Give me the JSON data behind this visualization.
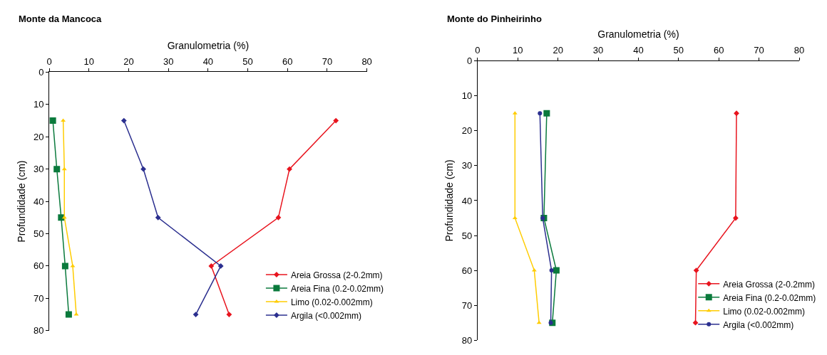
{
  "chart_data": [
    {
      "type": "line",
      "title": "Monte da Mancoca",
      "xlabel": "Granulometria (%)",
      "ylabel": "Profundidade (cm)",
      "xlim": [
        0,
        80
      ],
      "xticks": [
        0,
        10,
        20,
        30,
        40,
        50,
        60,
        70,
        80
      ],
      "ylim": [
        80,
        0
      ],
      "yticks": [
        0,
        10,
        20,
        30,
        40,
        50,
        60,
        70,
        80
      ],
      "grid": false,
      "legend": "bottom right",
      "series": [
        {
          "name": "Areia Grossa (2-0.2mm)",
          "color": "#e8141e",
          "marker": "diamond",
          "x": [
            72.2,
            60.5,
            57.7,
            40.8,
            45.3
          ],
          "values": [
            15,
            30,
            45,
            60,
            75
          ]
        },
        {
          "name": "Areia Fina (0.2-0.02mm)",
          "color": "#0a7a3c",
          "marker": "square",
          "x": [
            0.9,
            1.9,
            3.0,
            4.0,
            4.9
          ],
          "values": [
            15,
            30,
            45,
            60,
            75
          ]
        },
        {
          "name": "Limo (0.02-0.002mm)",
          "color": "#ffcc00",
          "marker": "triangle",
          "x": [
            3.5,
            3.8,
            3.8,
            5.9,
            6.8
          ],
          "values": [
            15,
            30,
            45,
            60,
            75
          ]
        },
        {
          "name": "Argila (<0.002mm)",
          "color": "#2b2f8f",
          "marker": "diamond",
          "x": [
            18.8,
            23.7,
            27.4,
            43.2,
            36.9
          ],
          "values": [
            15,
            30,
            45,
            60,
            75
          ]
        }
      ]
    },
    {
      "type": "line",
      "title": "Monte do Pinheirinho",
      "xlabel": "Granulometria (%)",
      "ylabel": "Profundidade (cm)",
      "xlim": [
        0,
        80
      ],
      "xticks": [
        0,
        10,
        20,
        30,
        40,
        50,
        60,
        70,
        80
      ],
      "ylim": [
        80,
        0
      ],
      "yticks": [
        0,
        10,
        20,
        30,
        40,
        50,
        60,
        70,
        80
      ],
      "grid": false,
      "legend": "bottom right",
      "series": [
        {
          "name": "Areia Grossa (2-0.2mm)",
          "color": "#e8141e",
          "marker": "diamond",
          "x": [
            64.4,
            64.2,
            54.4,
            54.2
          ],
          "values": [
            15,
            45,
            60,
            75
          ]
        },
        {
          "name": "Areia Fina (0.2-0.02mm)",
          "color": "#0a7a3c",
          "marker": "square",
          "x": [
            17.2,
            16.5,
            19.6,
            18.6
          ],
          "values": [
            15,
            45,
            60,
            75
          ]
        },
        {
          "name": "Limo (0.02-0.002mm)",
          "color": "#ffcc00",
          "marker": "triangle",
          "x": [
            9.3,
            9.3,
            14.1,
            15.3
          ],
          "values": [
            15,
            45,
            60,
            75
          ]
        },
        {
          "name": "Argila (<0.002mm)",
          "color": "#2b2f8f",
          "marker": "circle",
          "x": [
            15.5,
            16.2,
            18.4,
            18.2
          ],
          "values": [
            15,
            45,
            60,
            75
          ]
        }
      ]
    }
  ]
}
